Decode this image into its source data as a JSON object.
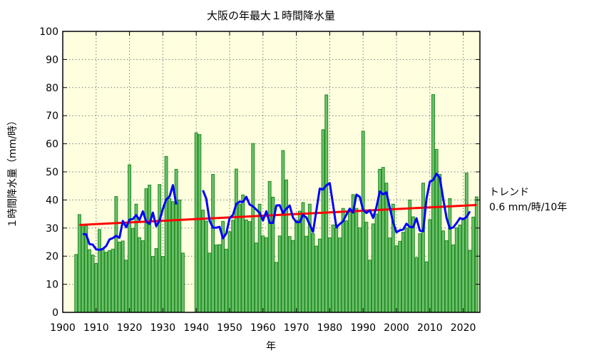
{
  "chart_data": {
    "type": "bar",
    "title": "大阪の年最大１時間降水量",
    "xlabel": "年",
    "ylabel": "１時間降水量（mm/時）",
    "xlim": [
      1900,
      2025
    ],
    "ylim": [
      0,
      100
    ],
    "xticks": [
      1900,
      1910,
      1920,
      1930,
      1940,
      1950,
      1960,
      1970,
      1980,
      1990,
      2000,
      2010,
      2020
    ],
    "yticks": [
      0,
      10,
      20,
      30,
      40,
      50,
      60,
      70,
      80,
      90,
      100
    ],
    "grid": true,
    "colors": {
      "background": "#ffffe0",
      "bar_fill": "#6cc06c",
      "bar_edge": "#1f8a1f",
      "moving_average": "#0000ff",
      "trend": "#ff0000"
    },
    "bars": {
      "start_year": 1904,
      "values": [
        20.6,
        34.8,
        30.5,
        30.9,
        22.3,
        20.4,
        17.4,
        29.5,
        22.6,
        21.4,
        22.0,
        22.5,
        41.2,
        25.0,
        25.4,
        18.6,
        52.5,
        29.9,
        38.5,
        26.6,
        25.5,
        44.0,
        45.3,
        19.9,
        22.7,
        45.5,
        19.9,
        55.5,
        40.5,
        39.4,
        50.9,
        40.0,
        21.1,
        null,
        null,
        null,
        63.9,
        63.3,
        36.4,
        32.5,
        21.1,
        49.1,
        24.0,
        24.1,
        32.4,
        22.5,
        28.7,
        32.8,
        51.0,
        38.5,
        41.8,
        32.9,
        32.3,
        60.1,
        24.7,
        38.5,
        27.2,
        26.6,
        46.6,
        41.0,
        17.8,
        27.2,
        57.6,
        47.1,
        27.0,
        25.6,
        32.8,
        36.0,
        39.1,
        27.1,
        38.5,
        28.0,
        23.6,
        26.1,
        65.0,
        77.4,
        26.5,
        31.1,
        30.0,
        26.5,
        37.0,
        32.6,
        36.0,
        41.9,
        37.0,
        30.1,
        64.5,
        32.1,
        18.6,
        31.5,
        35.0,
        50.9,
        51.6,
        46.0,
        26.5,
        38.5,
        23.7,
        25.3,
        28.5,
        30.0,
        40.0,
        34.0,
        19.5,
        28.0,
        46.0,
        18.0,
        33.0,
        77.5,
        58.0,
        49.1,
        29.0,
        25.5,
        40.5,
        24.0,
        30.1,
        31.1,
        33.0,
        49.6,
        22.1,
        33.9,
        41.1
      ]
    },
    "moving_average_window_years": 5,
    "trend": {
      "start": [
        1905,
        31.1
      ],
      "end": [
        2024,
        38.2
      ],
      "label_line1": "トレンド",
      "label_line2": "0.6 mm/時/10年"
    }
  }
}
